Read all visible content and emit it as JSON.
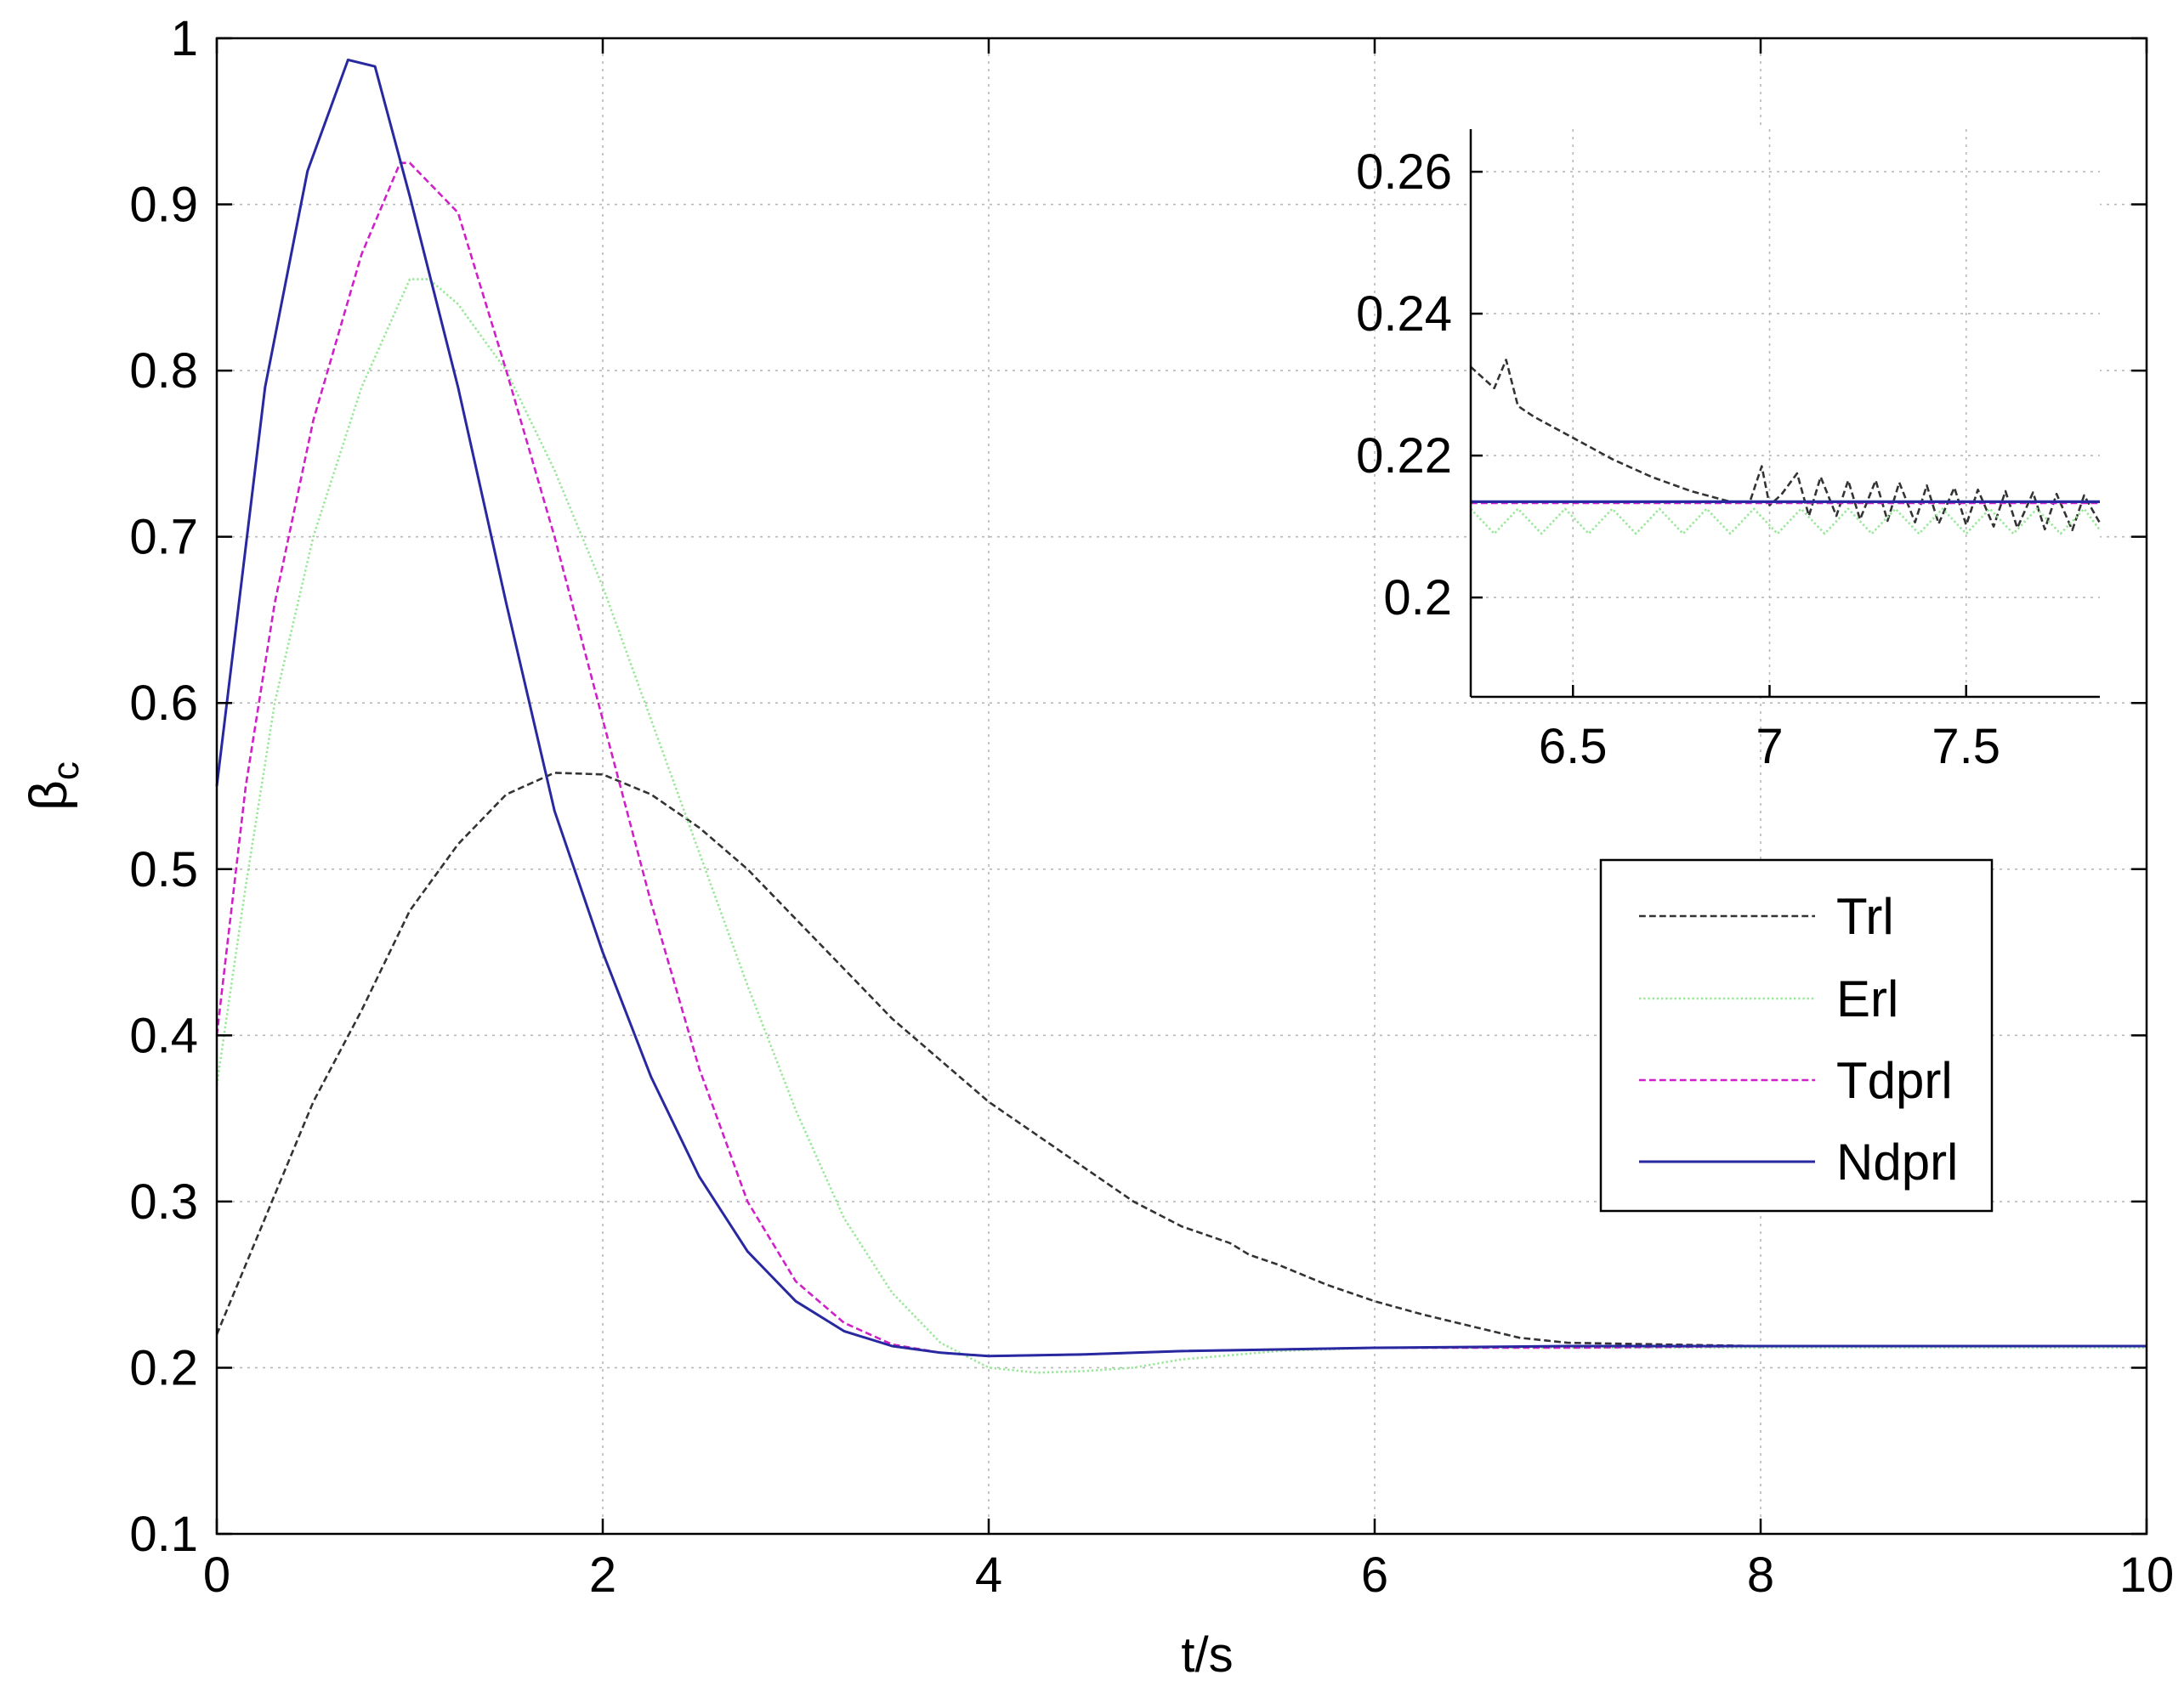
{
  "chart_data": [
    {
      "id": "main",
      "type": "line",
      "title": "",
      "xlabel": "t/s",
      "ylabel_main": "β",
      "ylabel_sub": "c",
      "xlim": [
        0,
        10
      ],
      "ylim": [
        0.1,
        1
      ],
      "xticks": [
        0,
        2,
        4,
        6,
        8,
        10
      ],
      "xtick_labels": [
        "0",
        "2",
        "4",
        "6",
        "8",
        "10"
      ],
      "yticks": [
        0.1,
        0.2,
        0.3,
        0.4,
        0.5,
        0.6,
        0.7,
        0.8,
        0.9,
        1
      ],
      "ytick_labels": [
        "0.1",
        "0.2",
        "0.3",
        "0.4",
        "0.5",
        "0.6",
        "0.7",
        "0.8",
        "0.9",
        "1"
      ],
      "grid": true,
      "legend_position": "right",
      "series": [
        {
          "name": "Trl",
          "color": "#333333",
          "style": "dashed",
          "x": [
            0,
            0.25,
            0.5,
            0.75,
            1.0,
            1.25,
            1.5,
            1.75,
            2.0,
            2.25,
            2.5,
            2.75,
            3.0,
            3.25,
            3.5,
            3.75,
            4.0,
            4.25,
            4.5,
            4.75,
            5.0,
            5.25,
            5.35,
            5.5,
            5.75,
            6.0,
            6.25,
            6.5,
            6.75,
            7.0,
            7.5,
            8.0,
            8.5,
            9.0,
            9.5,
            10.0
          ],
          "y": [
            0.22,
            0.29,
            0.36,
            0.415,
            0.475,
            0.515,
            0.545,
            0.558,
            0.557,
            0.545,
            0.525,
            0.5,
            0.47,
            0.44,
            0.41,
            0.385,
            0.36,
            0.34,
            0.32,
            0.3,
            0.285,
            0.275,
            0.268,
            0.262,
            0.25,
            0.24,
            0.232,
            0.225,
            0.218,
            0.215,
            0.214,
            0.213,
            0.213,
            0.213,
            0.213,
            0.213
          ]
        },
        {
          "name": "Erl",
          "color": "#98e898",
          "style": "dotted",
          "x": [
            0,
            0.15,
            0.3,
            0.5,
            0.75,
            1.0,
            1.1,
            1.25,
            1.5,
            1.75,
            2.0,
            2.25,
            2.5,
            2.75,
            3.0,
            3.25,
            3.5,
            3.75,
            4.0,
            4.25,
            4.5,
            4.75,
            5.0,
            5.5,
            6.0,
            7.0,
            8.0,
            9.0,
            10.0
          ],
          "y": [
            0.37,
            0.49,
            0.6,
            0.7,
            0.79,
            0.855,
            0.855,
            0.84,
            0.8,
            0.74,
            0.67,
            0.59,
            0.51,
            0.43,
            0.355,
            0.29,
            0.245,
            0.215,
            0.2,
            0.197,
            0.198,
            0.2,
            0.205,
            0.21,
            0.212,
            0.212,
            0.212,
            0.212,
            0.212
          ]
        },
        {
          "name": "Tdprl",
          "color": "#d020c8",
          "style": "dashed",
          "x": [
            0,
            0.15,
            0.3,
            0.5,
            0.75,
            0.95,
            1.0,
            1.25,
            1.5,
            1.75,
            2.0,
            2.25,
            2.5,
            2.75,
            3.0,
            3.25,
            3.5,
            3.75,
            4.0,
            4.5,
            5.0,
            6.0,
            7.0,
            8.0,
            9.0,
            10.0
          ],
          "y": [
            0.4,
            0.55,
            0.66,
            0.77,
            0.87,
            0.925,
            0.925,
            0.895,
            0.8,
            0.7,
            0.59,
            0.48,
            0.38,
            0.3,
            0.252,
            0.227,
            0.214,
            0.209,
            0.207,
            0.208,
            0.21,
            0.212,
            0.212,
            0.213,
            0.213,
            0.213
          ]
        },
        {
          "name": "Ndprl",
          "color": "#2828a0",
          "style": "solid",
          "x": [
            0,
            0.25,
            0.47,
            0.68,
            0.82,
            1.0,
            1.25,
            1.5,
            1.75,
            2.0,
            2.25,
            2.5,
            2.75,
            3.0,
            3.25,
            3.5,
            3.75,
            4.0,
            4.5,
            5.0,
            6.0,
            7.0,
            8.0,
            9.0,
            10.0
          ],
          "y": [
            0.55,
            0.79,
            0.92,
            0.987,
            0.983,
            0.905,
            0.79,
            0.66,
            0.535,
            0.45,
            0.375,
            0.315,
            0.27,
            0.24,
            0.222,
            0.213,
            0.209,
            0.207,
            0.208,
            0.21,
            0.212,
            0.213,
            0.213,
            0.213,
            0.213
          ]
        }
      ]
    },
    {
      "id": "inset",
      "type": "line",
      "title": "",
      "xlabel": "",
      "ylabel": "",
      "xlim": [
        6.24,
        7.84
      ],
      "ylim": [
        0.186,
        0.266
      ],
      "xticks": [
        6.5,
        7,
        7.5
      ],
      "xtick_labels": [
        "6.5",
        "7",
        "7.5"
      ],
      "yticks": [
        0.2,
        0.22,
        0.24,
        0.26
      ],
      "ytick_labels": [
        "0.2",
        "0.22",
        "0.24",
        "0.26"
      ],
      "grid": true,
      "series": [
        {
          "name": "Trl",
          "color": "#333333",
          "style": "dashed",
          "x": [
            6.24,
            6.27,
            6.3,
            6.33,
            6.36,
            6.4,
            6.5,
            6.6,
            6.7,
            6.8,
            6.9,
            6.95,
            6.98,
            7.0,
            7.03,
            7.07,
            7.1,
            7.13,
            7.17,
            7.2,
            7.23,
            7.27,
            7.3,
            7.33,
            7.37,
            7.4,
            7.43,
            7.47,
            7.5,
            7.53,
            7.57,
            7.6,
            7.63,
            7.67,
            7.7,
            7.73,
            7.77,
            7.8,
            7.84
          ],
          "y": [
            0.2325,
            0.231,
            0.2295,
            0.2335,
            0.227,
            0.2255,
            0.2225,
            0.2195,
            0.217,
            0.215,
            0.2135,
            0.2135,
            0.2185,
            0.213,
            0.2145,
            0.2175,
            0.2115,
            0.217,
            0.2115,
            0.2165,
            0.211,
            0.2165,
            0.2108,
            0.2162,
            0.2106,
            0.2158,
            0.2104,
            0.2155,
            0.2102,
            0.2152,
            0.21,
            0.215,
            0.2098,
            0.2148,
            0.2096,
            0.2146,
            0.2095,
            0.2144,
            0.2105
          ]
        },
        {
          "name": "Erl",
          "color": "#98e898",
          "style": "dotted",
          "x": [
            6.24,
            6.3,
            6.36,
            6.42,
            6.48,
            6.54,
            6.6,
            6.66,
            6.72,
            6.78,
            6.84,
            6.9,
            6.96,
            7.02,
            7.08,
            7.14,
            7.2,
            7.26,
            7.32,
            7.38,
            7.44,
            7.5,
            7.56,
            7.62,
            7.68,
            7.74,
            7.8,
            7.84
          ],
          "y": [
            0.2125,
            0.209,
            0.2125,
            0.209,
            0.2125,
            0.209,
            0.2125,
            0.209,
            0.2125,
            0.209,
            0.2125,
            0.209,
            0.2125,
            0.209,
            0.2125,
            0.209,
            0.2125,
            0.209,
            0.2125,
            0.209,
            0.2125,
            0.209,
            0.2125,
            0.209,
            0.2125,
            0.209,
            0.2125,
            0.2095
          ]
        },
        {
          "name": "Tdprl",
          "color": "#d020c8",
          "style": "dashed",
          "x": [
            6.24,
            7.84
          ],
          "y": [
            0.2133,
            0.2133
          ]
        },
        {
          "name": "Ndprl",
          "color": "#2828a0",
          "style": "solid",
          "x": [
            6.24,
            7.84
          ],
          "y": [
            0.2135,
            0.2135
          ]
        }
      ]
    }
  ]
}
